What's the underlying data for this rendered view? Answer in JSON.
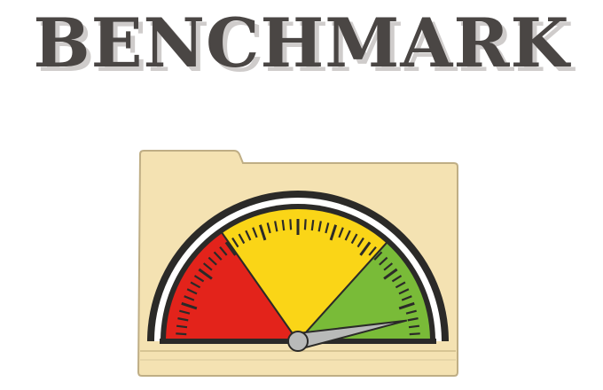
{
  "title": "BENCHMARK",
  "gauge": {
    "needle_fraction": 0.94,
    "zones": [
      "red",
      "yellow",
      "green"
    ]
  },
  "colors": {
    "title": "#4a4644",
    "title_shadow": "#cfcccb",
    "folder_fill": "#f4e2b2",
    "folder_edge": "#bfae85",
    "zone_red": "#e3231b",
    "zone_yellow": "#fad517",
    "zone_green": "#79bb38",
    "needle": "#b9bab9",
    "outline": "#2b2a28"
  },
  "icons": [
    "folder-icon",
    "speedometer-gauge-icon"
  ]
}
